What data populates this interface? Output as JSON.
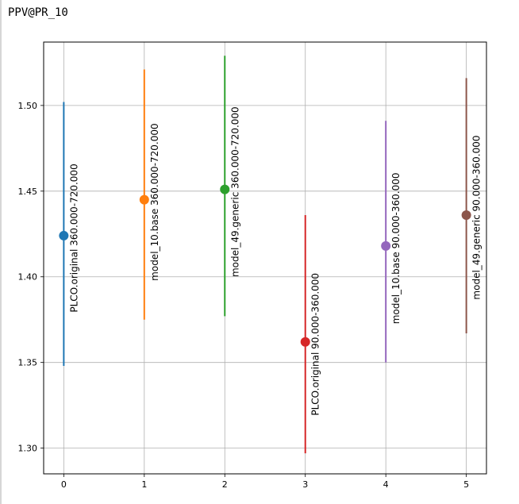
{
  "output_title": "PPV@PR_10",
  "chart_data": {
    "type": "scatter",
    "subtype": "point-with-error-bars",
    "title": "",
    "xlabel": "",
    "ylabel": "",
    "xlim": [
      -0.25,
      5.25
    ],
    "ylim": [
      1.285,
      1.537
    ],
    "xticks": [
      0,
      1,
      2,
      3,
      4,
      5
    ],
    "xtick_labels": [
      "0",
      "1",
      "2",
      "3",
      "4",
      "5"
    ],
    "yticks": [
      1.3,
      1.35,
      1.4,
      1.45,
      1.5
    ],
    "ytick_labels": [
      "1.30",
      "1.35",
      "1.40",
      "1.45",
      "1.50"
    ],
    "grid": true,
    "points": [
      {
        "x": 0,
        "y": 1.424,
        "lower": 1.348,
        "upper": 1.502,
        "label": "PLCO.original 360.000-720.000",
        "color": "#1f77b4"
      },
      {
        "x": 1,
        "y": 1.445,
        "lower": 1.375,
        "upper": 1.521,
        "label": "model_10.base 360.000-720.000",
        "color": "#ff7f0e"
      },
      {
        "x": 2,
        "y": 1.451,
        "lower": 1.377,
        "upper": 1.529,
        "label": "model_49.generic 360.000-720.000",
        "color": "#2ca02c"
      },
      {
        "x": 3,
        "y": 1.362,
        "lower": 1.297,
        "upper": 1.436,
        "label": "PLCO.original 90.000-360.000",
        "color": "#d62728"
      },
      {
        "x": 4,
        "y": 1.418,
        "lower": 1.35,
        "upper": 1.491,
        "label": "model_10.base 90.000-360.000",
        "color": "#9467bd"
      },
      {
        "x": 5,
        "y": 1.436,
        "lower": 1.367,
        "upper": 1.516,
        "label": "model_49.generic 90.000-360.000",
        "color": "#8c564b"
      }
    ]
  }
}
